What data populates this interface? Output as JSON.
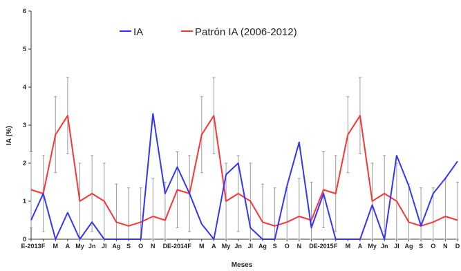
{
  "chart_data": {
    "type": "line",
    "xlabel": "Meses",
    "ylabel": "IA (%)",
    "ylim": [
      0,
      6
    ],
    "yticks": [
      0,
      1,
      2,
      3,
      4,
      5,
      6
    ],
    "legend_placement": "top",
    "grid": false,
    "categories": [
      "E-2013",
      "F",
      "M",
      "A",
      "My",
      "Jn",
      "Jl",
      "Ag",
      "S",
      "O",
      "N",
      "D",
      "E-2014",
      "F",
      "M",
      "A",
      "My",
      "Jn",
      "Jl",
      "Ag",
      "S",
      "O",
      "N",
      "D",
      "E-2015",
      "F",
      "M",
      "A",
      "My",
      "Jn",
      "Jl",
      "Ag",
      "S",
      "O",
      "N",
      "D"
    ],
    "tick_labels": [
      "E-2013",
      "F",
      "M",
      "A",
      "My",
      "Jn",
      "Jl",
      "Ag",
      "S",
      "O",
      "N",
      "D",
      "E-2014",
      "F",
      "M",
      "A",
      "My",
      "Jn",
      "Jl",
      "Ag",
      "S",
      "O",
      "N",
      "D",
      "E-2015",
      "F",
      "M",
      "A",
      "My",
      "Jn",
      "Jl",
      "Ag",
      "S",
      "O",
      "N",
      "D"
    ],
    "series": [
      {
        "name": "IA",
        "color": "#3333ff",
        "values": [
          0.5,
          1.2,
          0.0,
          0.7,
          0.0,
          0.45,
          0.0,
          0.0,
          0.0,
          0.0,
          3.3,
          1.2,
          1.9,
          1.2,
          0.4,
          0.0,
          1.7,
          2.0,
          0.3,
          0.0,
          0.0,
          1.4,
          2.55,
          0.3,
          1.2,
          0.0,
          0.0,
          0.0,
          0.9,
          0.0,
          2.2,
          1.4,
          0.35,
          1.2,
          1.6,
          2.05
        ]
      },
      {
        "name": "Patrón IA (2006-2012)",
        "color": "#ff3333",
        "values": [
          1.3,
          1.2,
          2.75,
          3.25,
          1.0,
          1.2,
          1.0,
          0.45,
          0.35,
          0.45,
          0.6,
          0.5,
          1.3,
          1.2,
          2.75,
          3.25,
          1.0,
          1.2,
          1.0,
          0.45,
          0.35,
          0.45,
          0.6,
          0.5,
          1.3,
          1.2,
          2.75,
          3.25,
          1.0,
          1.2,
          1.0,
          0.45,
          0.35,
          0.45,
          0.6,
          0.5
        ],
        "error": [
          1.0,
          1.0,
          1.0,
          1.0,
          1.0,
          1.0,
          1.0,
          1.0,
          1.0,
          0.9,
          1.0,
          1.0,
          1.0,
          1.0,
          1.0,
          1.0,
          1.0,
          1.0,
          1.0,
          1.0,
          1.0,
          0.9,
          1.0,
          1.0,
          1.0,
          1.0,
          1.0,
          1.0,
          1.0,
          1.0,
          1.0,
          1.0,
          1.0,
          0.9,
          1.0,
          1.0
        ]
      }
    ]
  }
}
